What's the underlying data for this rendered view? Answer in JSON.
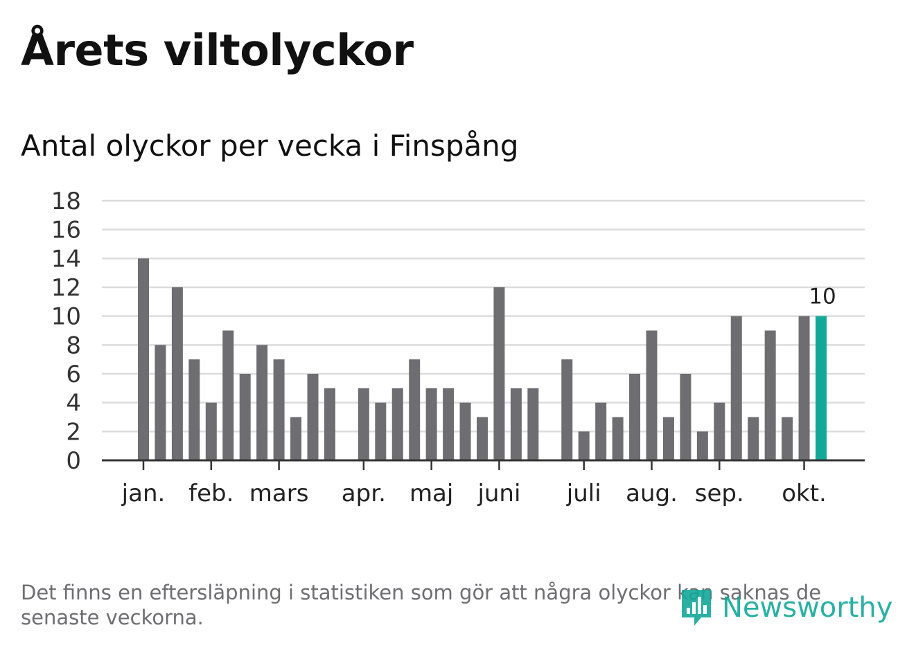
{
  "title": "Årets viltolyckor",
  "subtitle": "Antal olyckor per vecka i Finspång",
  "footnote": "Det finns en eftersläpning i statistiken som gör att några olyckor kan saknas de senaste veckorna.",
  "brand": {
    "name": "Newsworthy",
    "color": "#12a89a"
  },
  "colors": {
    "bar": "#6e6d72",
    "highlight": "#12a89a",
    "grid": "#dcdcdc",
    "axis": "#333333"
  },
  "chart_data": {
    "type": "bar",
    "title": "Antal olyckor per vecka i Finspång",
    "xlabel": "",
    "ylabel": "",
    "ylim": [
      0,
      18
    ],
    "yticks": [
      0,
      2,
      4,
      6,
      8,
      10,
      12,
      14,
      16,
      18
    ],
    "grid": true,
    "weeks": [
      1,
      2,
      3,
      4,
      5,
      6,
      7,
      8,
      9,
      10,
      11,
      12,
      13,
      14,
      15,
      16,
      17,
      18,
      19,
      20,
      21,
      22,
      23,
      24,
      25,
      26,
      27,
      28,
      29,
      30,
      31,
      32,
      33,
      34,
      35,
      36,
      37,
      38,
      39,
      40,
      41
    ],
    "values": [
      14,
      8,
      12,
      7,
      4,
      9,
      6,
      8,
      7,
      3,
      6,
      5,
      0,
      5,
      4,
      5,
      7,
      5,
      5,
      4,
      3,
      12,
      5,
      5,
      0,
      7,
      2,
      4,
      3,
      6,
      9,
      3,
      6,
      2,
      4,
      10,
      3,
      9,
      3,
      10,
      10
    ],
    "highlight_index": 40,
    "highlight_label": "10",
    "month_labels": [
      {
        "label": "jan.",
        "week": 1
      },
      {
        "label": "feb.",
        "week": 5
      },
      {
        "label": "mars",
        "week": 9
      },
      {
        "label": "apr.",
        "week": 14
      },
      {
        "label": "maj",
        "week": 18
      },
      {
        "label": "juni",
        "week": 22
      },
      {
        "label": "juli",
        "week": 27
      },
      {
        "label": "aug.",
        "week": 31
      },
      {
        "label": "sep.",
        "week": 35
      },
      {
        "label": "okt.",
        "week": 40
      }
    ]
  }
}
